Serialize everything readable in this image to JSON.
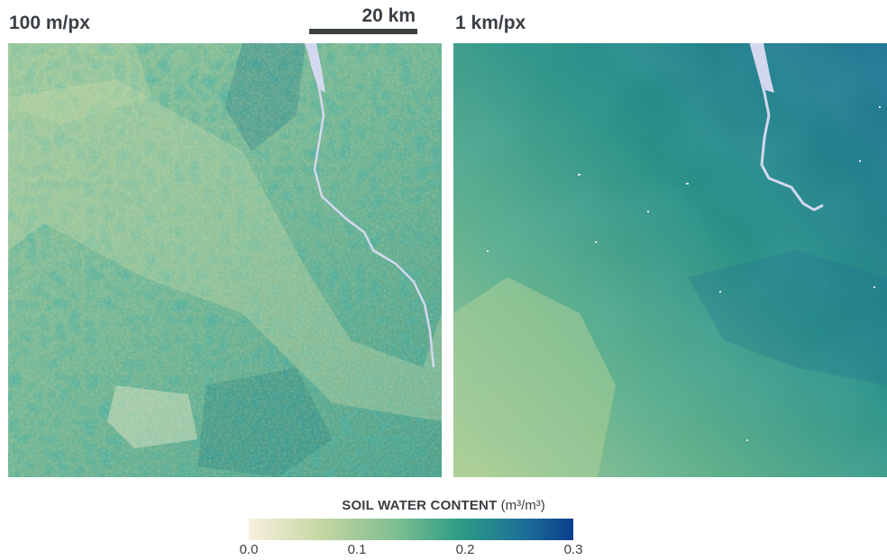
{
  "panels": {
    "left_label": "100 m/px",
    "right_label": "1 km/px"
  },
  "scale_bar": {
    "label": "20 km"
  },
  "legend": {
    "title_bold": "SOIL WATER CONTENT",
    "title_unit": "(m³/m³)",
    "ticks": [
      "0.0",
      "0.1",
      "0.2",
      "0.3"
    ],
    "colors": [
      "#f8f0df",
      "#c6d7a3",
      "#7fbf92",
      "#2e9c85",
      "#1c6f98",
      "#0b3d8c"
    ]
  },
  "colors": {
    "text": "#3a3f44",
    "water": "#d4d8ef"
  }
}
